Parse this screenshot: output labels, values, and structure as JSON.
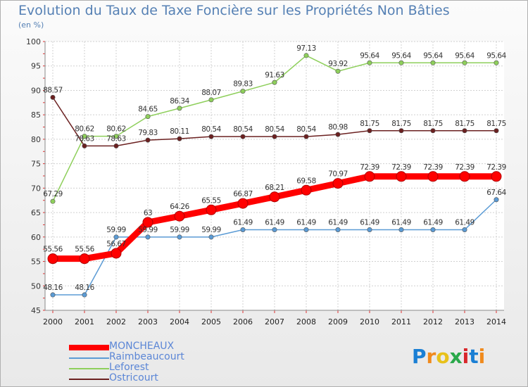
{
  "title": "Evolution du Taux de Taxe Foncière sur les Propriétés Non Bâties",
  "unit": "(en %)",
  "logo": {
    "text": "Proxiti",
    "letters": [
      "P",
      "r",
      "o",
      "x",
      "i",
      "t",
      "i"
    ],
    "colors": [
      "#1a7fd4",
      "#f08a1c",
      "#e8c11a",
      "#2aa84a",
      "#d8262a",
      "#1a7fd4",
      "#f08a1c"
    ]
  },
  "chart_data": {
    "type": "line",
    "title": "Evolution du Taux de Taxe Foncière sur les Propriétés Non Bâties",
    "ylabel": "(en %)",
    "xlabel": "",
    "ylim": [
      45,
      100
    ],
    "yticks": [
      45,
      50,
      55,
      60,
      65,
      70,
      75,
      80,
      85,
      90,
      95,
      100
    ],
    "grid": true,
    "legend": "bottom-left",
    "x": [
      "2000",
      "2001",
      "2002",
      "2003",
      "2004",
      "2005",
      "2006",
      "2007",
      "2008",
      "2009",
      "2010",
      "2011",
      "2012",
      "2013",
      "2014"
    ],
    "series": [
      {
        "name": "MONCHEAUX",
        "color": "#ff0000",
        "bold": true,
        "values": [
          55.56,
          55.56,
          56.67,
          63,
          64.26,
          65.55,
          66.87,
          68.21,
          69.58,
          70.97,
          72.39,
          72.39,
          72.39,
          72.39,
          72.39
        ],
        "labels": [
          "55.56",
          "55.56",
          "56.67",
          "63",
          "64.26",
          "65.55",
          "66.87",
          "68.21",
          "69.58",
          "70.97",
          "72.39",
          "72.39",
          "72.39",
          "72.39",
          "72.39"
        ]
      },
      {
        "name": "Raimbeaucourt",
        "color": "#5b9bd5",
        "bold": false,
        "values": [
          48.16,
          48.16,
          59.99,
          59.99,
          59.99,
          59.99,
          61.49,
          61.49,
          61.49,
          61.49,
          61.49,
          61.49,
          61.49,
          61.49,
          67.64
        ],
        "labels": [
          "48.16",
          "48.16",
          "59.99",
          "59.99",
          "59.99",
          "59.99",
          "61.49",
          "61.49",
          "61.49",
          "61.49",
          "61.49",
          "61.49",
          "61.49",
          "61.49",
          "67.64"
        ]
      },
      {
        "name": "Leforest",
        "color": "#8ecf5b",
        "bold": false,
        "values": [
          67.29,
          80.62,
          80.62,
          84.65,
          86.34,
          88.07,
          89.83,
          91.63,
          97.13,
          93.92,
          95.64,
          95.64,
          95.64,
          95.64,
          95.64
        ],
        "labels": [
          "67.29",
          "80.62",
          "80.62",
          "84.65",
          "86.34",
          "88.07",
          "89.83",
          "91.63",
          "97.13",
          "93.92",
          "95.64",
          "95.64",
          "95.64",
          "95.64",
          "95.64"
        ]
      },
      {
        "name": "Ostricourt",
        "color": "#6b2020",
        "bold": false,
        "values": [
          88.57,
          78.63,
          78.63,
          79.83,
          80.11,
          80.54,
          80.54,
          80.54,
          80.54,
          80.98,
          81.75,
          81.75,
          81.75,
          81.75,
          81.75
        ],
        "labels": [
          "88.57",
          "78.63",
          "78.63",
          "79.83",
          "80.11",
          "80.54",
          "80.54",
          "80.54",
          "80.54",
          "80.98",
          "81.75",
          "81.75",
          "81.75",
          "81.75",
          "81.75"
        ]
      }
    ]
  }
}
